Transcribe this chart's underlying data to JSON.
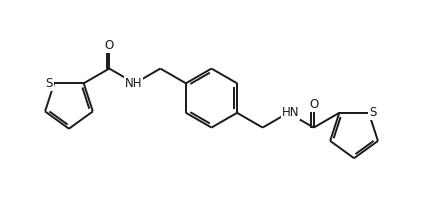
{
  "background_color": "#ffffff",
  "line_color": "#1a1a1a",
  "line_width": 1.4,
  "font_size": 8.5,
  "fig_width": 4.23,
  "fig_height": 2.13,
  "dpi": 100,
  "xlim": [
    0,
    100
  ],
  "ylim": [
    0,
    50
  ]
}
